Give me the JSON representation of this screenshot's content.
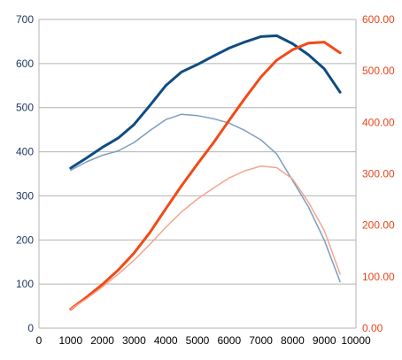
{
  "chart_data": {
    "type": "line",
    "x": [
      1000,
      1500,
      2000,
      2500,
      3000,
      3500,
      4000,
      4500,
      5000,
      5500,
      6000,
      6500,
      7000,
      7500,
      8000,
      8500,
      9000,
      9500
    ],
    "xlim": [
      0,
      10000
    ],
    "x_ticks": [
      "0",
      "1000",
      "2000",
      "3000",
      "4000",
      "5000",
      "6000",
      "7000",
      "8000",
      "9000",
      "10000"
    ],
    "y_left": {
      "ylim": [
        0,
        700
      ],
      "ticks": [
        "0",
        "100",
        "200",
        "300",
        "400",
        "500",
        "600",
        "700"
      ],
      "color": "#1f3864"
    },
    "y_right": {
      "ylim": [
        0,
        600
      ],
      "ticks": [
        "0.00",
        "100.00",
        "200.00",
        "300.00",
        "400.00",
        "500.00",
        "600.00"
      ],
      "color": "#e8461c"
    },
    "grid": true,
    "series": [
      {
        "axis": "left",
        "color": "#0f4c81",
        "width": 3,
        "values": [
          363,
          386,
          410,
          431,
          462,
          505,
          550,
          581,
          598,
          617,
          635,
          649,
          661,
          663,
          645,
          620,
          588,
          535
        ]
      },
      {
        "axis": "left",
        "color": "#7b9dc0",
        "width": 1.5,
        "values": [
          358,
          377,
          392,
          402,
          421,
          448,
          473,
          485,
          482,
          475,
          465,
          448,
          427,
          395,
          335,
          275,
          200,
          105
        ]
      },
      {
        "axis": "right",
        "color": "#f24a16",
        "width": 3,
        "values": [
          37,
          60,
          85,
          113,
          146,
          186,
          232,
          277,
          319,
          360,
          404,
          447,
          488,
          521,
          541,
          554,
          556,
          535
        ]
      },
      {
        "axis": "right",
        "color": "#f4a58f",
        "width": 1.5,
        "values": [
          37,
          57,
          80,
          105,
          132,
          163,
          196,
          226,
          251,
          272,
          292,
          306,
          315,
          312,
          290,
          245,
          190,
          105
        ]
      }
    ]
  }
}
